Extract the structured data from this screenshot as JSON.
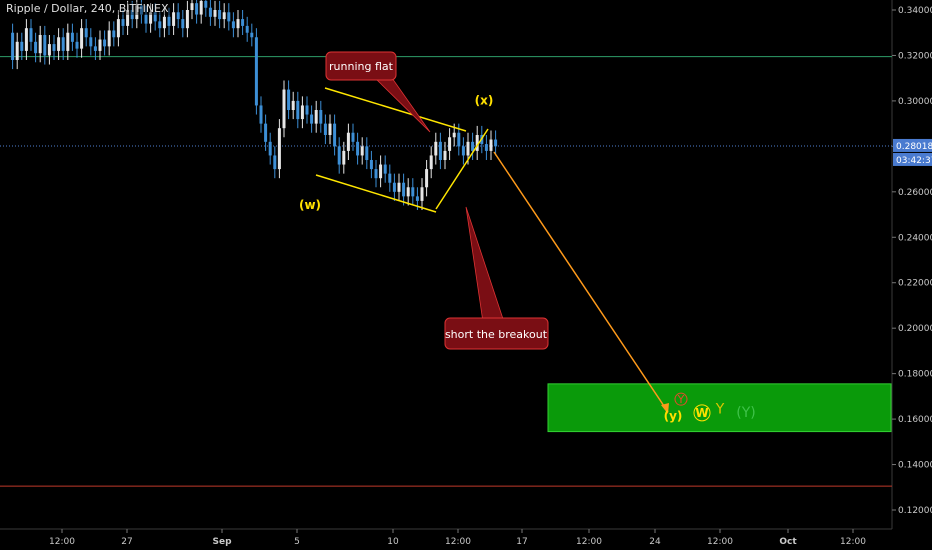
{
  "chart_data": {
    "type": "candlestick",
    "title": "Ripple / Dollar, 240, BITFINEX",
    "xlabel": "",
    "ylabel": "",
    "ylim": [
      0.112,
      0.346
    ],
    "x_ticks": [
      "12:00",
      "27",
      "Sep",
      "5",
      "10",
      "12:00",
      "17",
      "12:00",
      "24",
      "12:00",
      "Oct",
      "12:00"
    ],
    "y_ticks": [
      "0.34000",
      "0.32000",
      "0.30000",
      "0.28000",
      "0.26000",
      "0.24000",
      "0.22000",
      "0.20000",
      "0.18000",
      "0.16000",
      "0.14000",
      "0.12000"
    ],
    "y_tick_values": [
      0.34,
      0.32,
      0.3,
      0.28,
      0.26,
      0.24,
      0.22,
      0.2,
      0.18,
      0.16,
      0.14,
      0.12
    ],
    "candles_close_path": [
      0.33,
      0.318,
      0.326,
      0.322,
      0.332,
      0.326,
      0.321,
      0.329,
      0.32,
      0.325,
      0.322,
      0.328,
      0.322,
      0.33,
      0.326,
      0.323,
      0.332,
      0.328,
      0.324,
      0.322,
      0.327,
      0.324,
      0.331,
      0.328,
      0.336,
      0.333,
      0.34,
      0.336,
      0.342,
      0.338,
      0.334,
      0.339,
      0.335,
      0.332,
      0.337,
      0.333,
      0.339,
      0.336,
      0.332,
      0.34,
      0.343,
      0.338,
      0.344,
      0.341,
      0.337,
      0.34,
      0.336,
      0.339,
      0.335,
      0.332,
      0.336,
      0.333,
      0.33,
      0.328,
      0.298,
      0.29,
      0.282,
      0.276,
      0.27,
      0.288,
      0.305,
      0.296,
      0.3,
      0.292,
      0.298,
      0.294,
      0.29,
      0.296,
      0.29,
      0.285,
      0.29,
      0.28,
      0.272,
      0.278,
      0.286,
      0.282,
      0.276,
      0.28,
      0.274,
      0.27,
      0.266,
      0.272,
      0.268,
      0.264,
      0.26,
      0.264,
      0.258,
      0.262,
      0.258,
      0.256,
      0.262,
      0.27,
      0.276,
      0.282,
      0.274,
      0.278,
      0.284,
      0.286,
      0.28,
      0.276,
      0.282,
      0.278,
      0.285,
      0.281,
      0.278,
      0.283,
      0.28
    ],
    "current_price": "0.28018",
    "countdown": "03:42:37",
    "horizontal_lines": [
      {
        "value": 0.3195,
        "color": "#2e9e6a"
      },
      {
        "value": 0.1305,
        "color": "#c0392b"
      },
      {
        "value": 0.28018,
        "color": "#4f7fd0",
        "style": "dotted"
      }
    ],
    "target_zone": {
      "y_top": 0.1755,
      "y_bottom": 0.1545,
      "color": "#0a9a0a"
    },
    "annotations": [
      {
        "text": "running flat",
        "style": "callout"
      },
      {
        "text": "short the breakout",
        "style": "callout"
      }
    ],
    "wave_labels": [
      {
        "text": "(w)",
        "value": 0.2525,
        "color": "#ffe000"
      },
      {
        "text": "(x)",
        "value": 0.2985,
        "color": "#ffe000"
      },
      {
        "text": "(y)",
        "value": 0.1595,
        "color": "#ffe000"
      },
      {
        "text": "Y",
        "value": 0.167,
        "color": "#e34b2c"
      },
      {
        "text": "W",
        "value": 0.161,
        "color": "#ffe000"
      },
      {
        "text": "Y",
        "value": 0.1625,
        "color": "#d9c600"
      },
      {
        "text": "(Y)",
        "value": 0.161,
        "color": "#3fc24a"
      }
    ],
    "colors": {
      "up": "#e6e6e6",
      "down": "#3d8fd6",
      "channel": "#ffe600",
      "arrow": "#ff9a1a",
      "callout": "#7a0e14"
    }
  }
}
